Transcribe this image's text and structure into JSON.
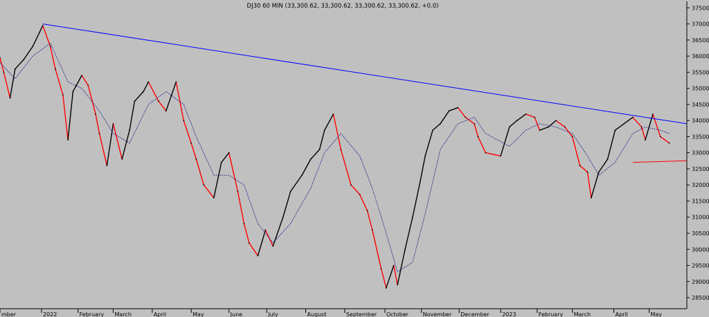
{
  "chart_data": {
    "type": "line",
    "title": "DJ30 60 MIN (33,300.62, 33,300.62, 33,300.62, 33,300.62, +0.0)",
    "xlabel": "",
    "ylabel": "",
    "ylim": [
      28200,
      37700
    ],
    "y_ticks": [
      28500,
      29000,
      29500,
      30000,
      30500,
      31000,
      31500,
      32000,
      32500,
      33000,
      33500,
      34000,
      34500,
      35000,
      35500,
      36000,
      36500,
      37000,
      37500
    ],
    "x_range": [
      "2021-12-01",
      "2023-05-31"
    ],
    "month_labels": [
      {
        "label": "mber",
        "date": "2021-12-01"
      },
      {
        "label": "2022",
        "date": "2022-01-03"
      },
      {
        "label": "February",
        "date": "2022-02-01"
      },
      {
        "label": "March",
        "date": "2022-03-01"
      },
      {
        "label": "April",
        "date": "2022-04-01"
      },
      {
        "label": "May",
        "date": "2022-05-02"
      },
      {
        "label": "June",
        "date": "2022-06-01"
      },
      {
        "label": "July",
        "date": "2022-07-01"
      },
      {
        "label": "August",
        "date": "2022-08-01"
      },
      {
        "label": "September",
        "date": "2022-09-01"
      },
      {
        "label": "October",
        "date": "2022-10-03"
      },
      {
        "label": "November",
        "date": "2022-11-01"
      },
      {
        "label": "December",
        "date": "2022-12-01"
      },
      {
        "label": "2023",
        "date": "2023-01-03"
      },
      {
        "label": "February",
        "date": "2023-02-01"
      },
      {
        "label": "March",
        "date": "2023-03-01"
      },
      {
        "label": "April",
        "date": "2023-04-03"
      },
      {
        "label": "May",
        "date": "2023-05-01"
      }
    ],
    "series": [
      {
        "color": "#000000",
        "alt_color": "#ff0000",
        "x": [
          "2021-12-01",
          "2021-12-04",
          "2021-12-09",
          "2021-12-13",
          "2021-12-20",
          "2021-12-27",
          "2022-01-04",
          "2022-01-10",
          "2022-01-14",
          "2022-01-20",
          "2022-01-24",
          "2022-01-28",
          "2022-02-04",
          "2022-02-09",
          "2022-02-15",
          "2022-02-18",
          "2022-02-24",
          "2022-03-01",
          "2022-03-08",
          "2022-03-14",
          "2022-03-18",
          "2022-03-25",
          "2022-03-29",
          "2022-04-06",
          "2022-04-12",
          "2022-04-20",
          "2022-04-26",
          "2022-05-02",
          "2022-05-06",
          "2022-05-12",
          "2022-05-20",
          "2022-05-26",
          "2022-06-01",
          "2022-06-08",
          "2022-06-13",
          "2022-06-17",
          "2022-06-24",
          "2022-06-30",
          "2022-07-06",
          "2022-07-14",
          "2022-07-20",
          "2022-07-29",
          "2022-08-05",
          "2022-08-12",
          "2022-08-16",
          "2022-08-23",
          "2022-08-29",
          "2022-09-06",
          "2022-09-13",
          "2022-09-19",
          "2022-09-23",
          "2022-09-30",
          "2022-10-04",
          "2022-10-10",
          "2022-10-13",
          "2022-10-19",
          "2022-10-25",
          "2022-10-31",
          "2022-11-04",
          "2022-11-10",
          "2022-11-16",
          "2022-11-23",
          "2022-11-30",
          "2022-12-06",
          "2022-12-13",
          "2022-12-16",
          "2022-12-22",
          "2023-01-03",
          "2023-01-10",
          "2023-01-16",
          "2023-01-23",
          "2023-01-30",
          "2023-02-03",
          "2023-02-10",
          "2023-02-16",
          "2023-02-23",
          "2023-03-01",
          "2023-03-07",
          "2023-03-13",
          "2023-03-16",
          "2023-03-22",
          "2023-03-29",
          "2023-04-04",
          "2023-04-11",
          "2023-04-18",
          "2023-04-25",
          "2023-04-28",
          "2023-05-04",
          "2023-05-10",
          "2023-05-17"
        ],
        "values": [
          35950,
          35500,
          34700,
          35600,
          35900,
          36300,
          36950,
          36300,
          35600,
          34800,
          33400,
          34900,
          35400,
          35100,
          34200,
          33600,
          32600,
          33900,
          32800,
          33700,
          34600,
          34900,
          35200,
          34600,
          34300,
          35200,
          34000,
          33300,
          32800,
          32000,
          31600,
          32700,
          33000,
          31800,
          30800,
          30200,
          29800,
          30600,
          30100,
          31000,
          31800,
          32300,
          32800,
          33100,
          33700,
          34200,
          33100,
          32000,
          31700,
          31200,
          30600,
          29400,
          28800,
          29500,
          28900,
          30000,
          31000,
          32100,
          32900,
          33700,
          33900,
          34300,
          34400,
          34100,
          33900,
          33500,
          33000,
          32900,
          33800,
          34000,
          34200,
          34100,
          33700,
          33800,
          34000,
          33800,
          33500,
          32600,
          32400,
          31600,
          32400,
          32800,
          33700,
          33900,
          34100,
          33800,
          33400,
          34200,
          33500,
          33300
        ]
      },
      {
        "color": "#000080",
        "x": [
          "2021-12-01",
          "2021-12-13",
          "2021-12-27",
          "2022-01-10",
          "2022-01-24",
          "2022-02-04",
          "2022-02-18",
          "2022-03-01",
          "2022-03-14",
          "2022-03-29",
          "2022-04-12",
          "2022-04-26",
          "2022-05-06",
          "2022-05-20",
          "2022-06-01",
          "2022-06-13",
          "2022-06-24",
          "2022-07-06",
          "2022-07-20",
          "2022-08-05",
          "2022-08-16",
          "2022-08-29",
          "2022-09-13",
          "2022-09-23",
          "2022-10-04",
          "2022-10-13",
          "2022-10-25",
          "2022-11-04",
          "2022-11-16",
          "2022-11-30",
          "2022-12-13",
          "2022-12-22",
          "2023-01-10",
          "2023-01-23",
          "2023-02-03",
          "2023-02-16",
          "2023-03-01",
          "2023-03-13",
          "2023-03-22",
          "2023-04-04",
          "2023-04-18",
          "2023-04-28",
          "2023-05-10",
          "2023-05-17"
        ],
        "values": [
          35800,
          35300,
          36000,
          36400,
          35200,
          35000,
          34300,
          33600,
          33300,
          34500,
          34900,
          34500,
          33500,
          32300,
          32300,
          32000,
          30800,
          30200,
          30800,
          31900,
          33000,
          33600,
          32900,
          31900,
          30500,
          29300,
          29600,
          31100,
          33100,
          33900,
          34100,
          33600,
          33200,
          33700,
          33900,
          33800,
          33600,
          32900,
          32300,
          32700,
          33600,
          33800,
          33700,
          33600
        ]
      }
    ],
    "annotations": [
      {
        "type": "trendline",
        "color": "#0000ff",
        "from": {
          "x": "2022-01-04",
          "y": 37000
        },
        "to": {
          "x": "2023-05-31",
          "y": 33900
        }
      },
      {
        "type": "trendline",
        "color": "#ff0000",
        "from": {
          "x": "2023-04-18",
          "y": 32700
        },
        "to": {
          "x": "2023-05-31",
          "y": 32750
        }
      }
    ],
    "grid": false,
    "legend": "none"
  }
}
